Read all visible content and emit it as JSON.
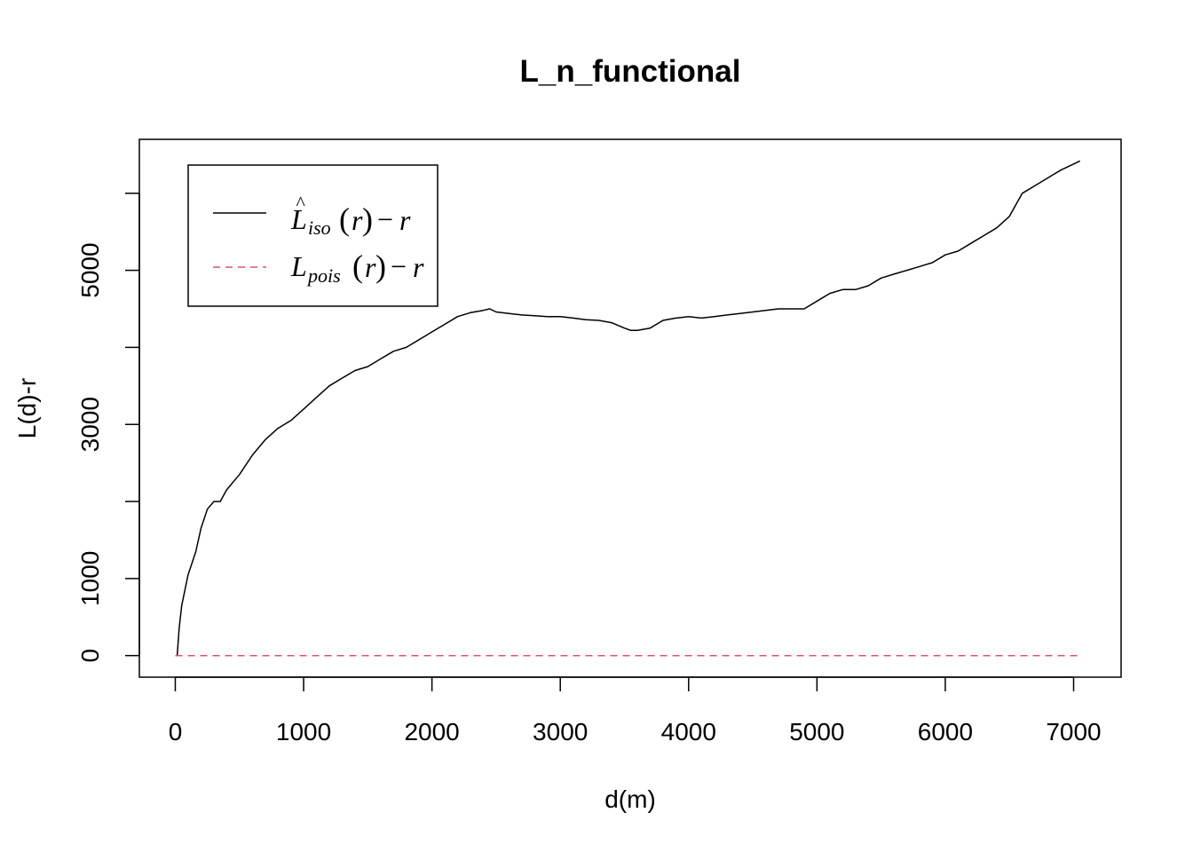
{
  "chart_data": {
    "type": "line",
    "title": "L_n_functional",
    "xlabel": "d(m)",
    "ylabel": "L(d)-r",
    "xlim": [
      -280,
      7370
    ],
    "ylim": [
      -280,
      6700
    ],
    "xticks": [
      0,
      1000,
      2000,
      3000,
      4000,
      5000,
      6000,
      7000
    ],
    "yticks": [
      0,
      1000,
      3000,
      5000
    ],
    "yticks_minor": [
      2000,
      4000,
      6000
    ],
    "tick_labels_x": [
      "0",
      "1000",
      "2000",
      "3000",
      "4000",
      "5000",
      "6000",
      "7000"
    ],
    "tick_labels_y": [
      "0",
      "1000",
      "3000",
      "5000"
    ],
    "grid": false,
    "legend_position": "top-left",
    "legend": [
      {
        "label_main": "L",
        "label_hat": "^",
        "label_sub": "iso",
        "label_arg": "r",
        "label_minus": "−",
        "label_tail": "r",
        "color": "#000000",
        "dash": "solid"
      },
      {
        "label_main": "L",
        "label_sub": "pois",
        "label_arg": "r",
        "label_minus": "−",
        "label_tail": "r",
        "color": "#DF536B",
        "dash": "dashed"
      }
    ],
    "series": [
      {
        "color": "#000000",
        "style": "solid",
        "x": [
          0,
          15,
          30,
          50,
          75,
          100,
          130,
          160,
          200,
          250,
          300,
          350,
          400,
          450,
          500,
          600,
          700,
          800,
          900,
          1000,
          1100,
          1200,
          1300,
          1400,
          1500,
          1600,
          1700,
          1800,
          1900,
          2000,
          2100,
          2200,
          2300,
          2400,
          2450,
          2500,
          2600,
          2700,
          2800,
          2900,
          3000,
          3100,
          3200,
          3300,
          3400,
          3500,
          3550,
          3600,
          3700,
          3800,
          3900,
          4000,
          4100,
          4200,
          4300,
          4400,
          4500,
          4600,
          4700,
          4800,
          4900,
          5000,
          5100,
          5200,
          5300,
          5400,
          5500,
          5600,
          5700,
          5800,
          5900,
          6000,
          6100,
          6200,
          6300,
          6400,
          6500,
          6550,
          6600,
          6700,
          6800,
          6900,
          7000,
          7050
        ],
        "y": [
          0,
          0,
          350,
          650,
          850,
          1050,
          1200,
          1350,
          1650,
          1900,
          2000,
          2000,
          2150,
          2250,
          2350,
          2600,
          2800,
          2950,
          3050,
          3200,
          3350,
          3500,
          3600,
          3700,
          3750,
          3850,
          3950,
          4000,
          4100,
          4200,
          4300,
          4400,
          4450,
          4480,
          4500,
          4460,
          4440,
          4420,
          4410,
          4400,
          4400,
          4380,
          4360,
          4350,
          4320,
          4250,
          4220,
          4220,
          4250,
          4350,
          4380,
          4400,
          4380,
          4400,
          4420,
          4440,
          4460,
          4480,
          4500,
          4500,
          4500,
          4600,
          4700,
          4750,
          4750,
          4800,
          4900,
          4950,
          5000,
          5050,
          5100,
          5200,
          5250,
          5350,
          5450,
          5550,
          5700,
          5850,
          6000,
          6100,
          6200,
          6300,
          6380,
          6420
        ]
      },
      {
        "color": "#DF536B",
        "style": "dashed",
        "x": [
          0,
          7050
        ],
        "y": [
          0,
          0
        ]
      }
    ]
  }
}
